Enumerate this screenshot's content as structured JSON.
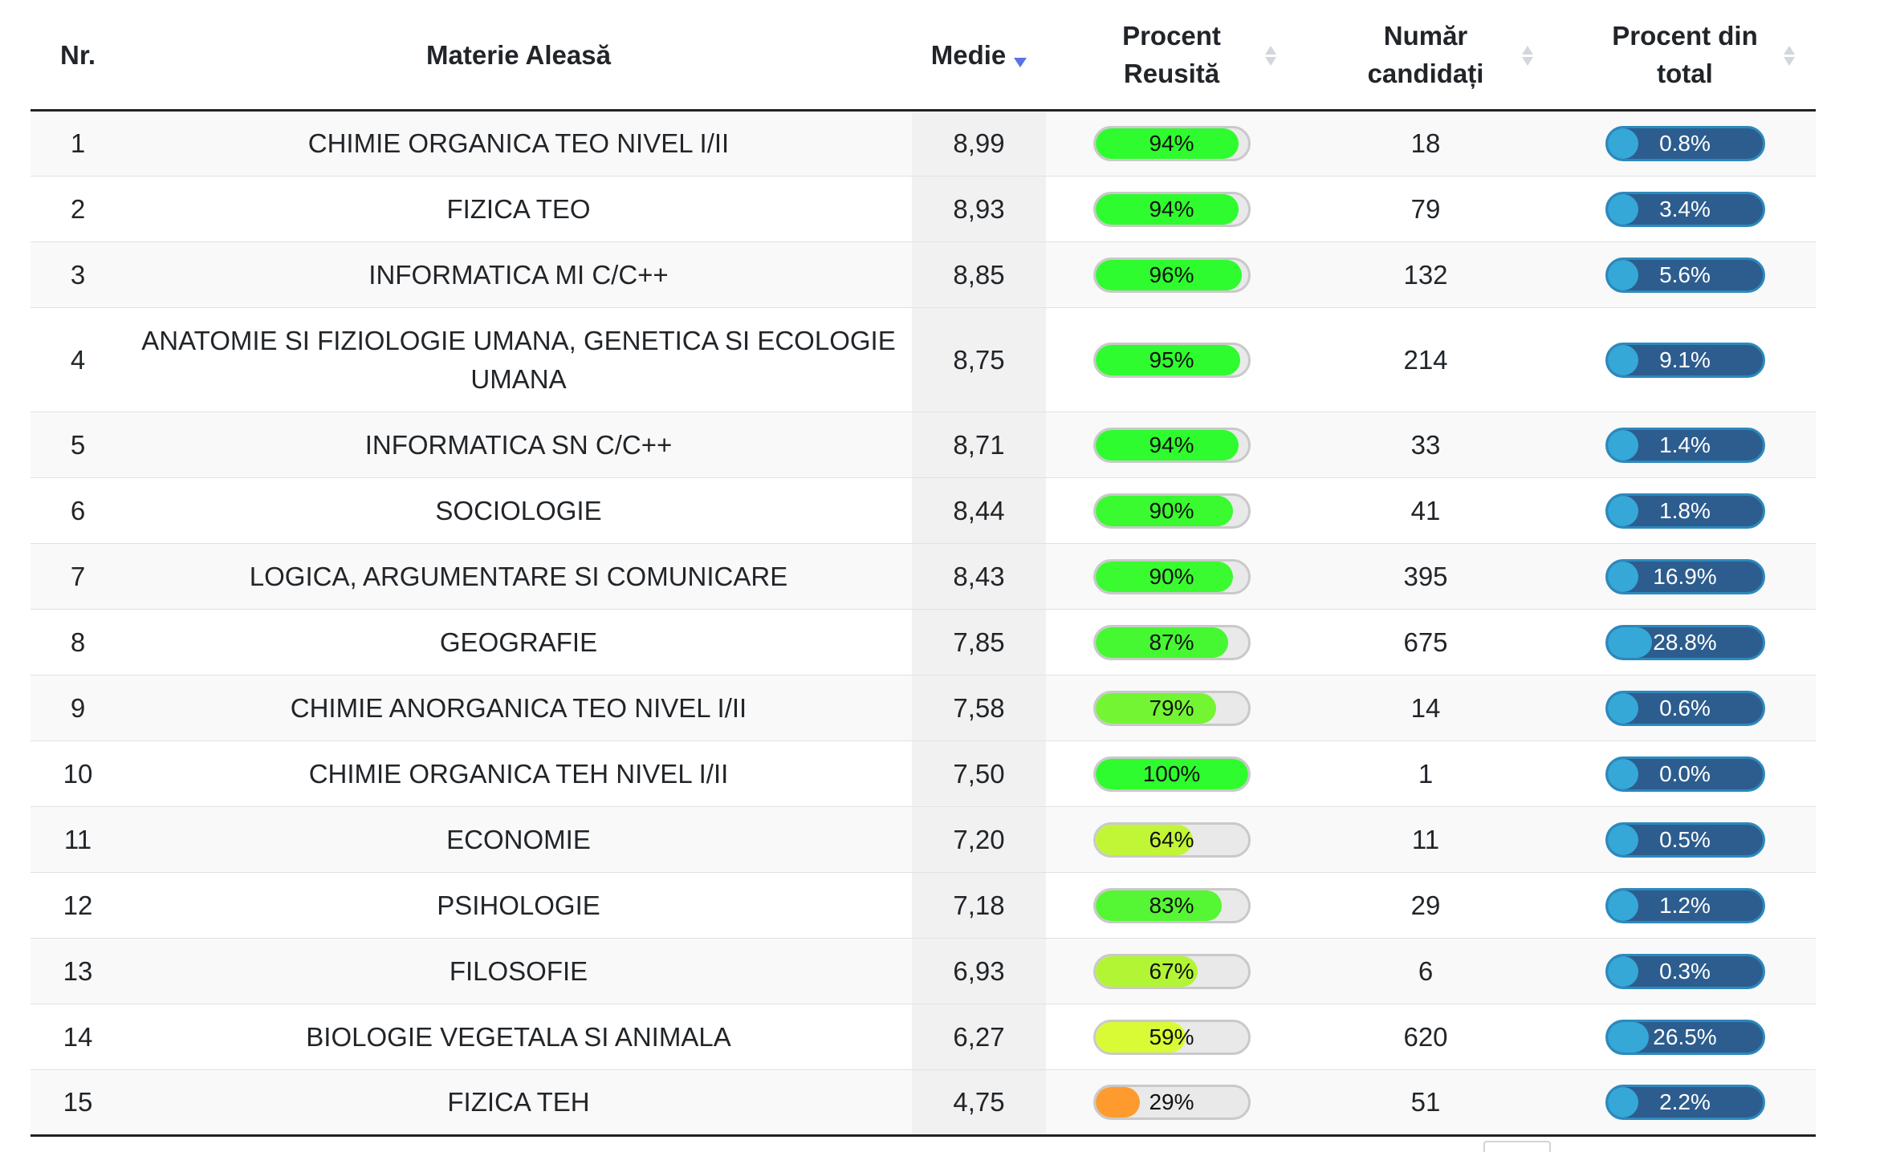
{
  "headers": {
    "nr": "Nr.",
    "materie": "Materie Aleasă",
    "medie": "Medie",
    "procent_reusita_1": "Procent",
    "procent_reusita_2": "Reusită",
    "numar_1": "Număr",
    "numar_2": "candidați",
    "procent_total_1": "Procent din",
    "procent_total_2": "total"
  },
  "rows": [
    {
      "nr": "1",
      "materie": "CHIMIE ORGANICA TEO NIVEL I/II",
      "medie": "8,99",
      "reusita": "94%",
      "reusita_value": 94,
      "reusita_color": "#2efc2e",
      "candidati": "18",
      "total": "0.8%",
      "total_value": 0.8
    },
    {
      "nr": "2",
      "materie": "FIZICA TEO",
      "medie": "8,93",
      "reusita": "94%",
      "reusita_value": 94,
      "reusita_color": "#2efc2e",
      "candidati": "79",
      "total": "3.4%",
      "total_value": 3.4
    },
    {
      "nr": "3",
      "materie": "INFORMATICA MI C/C++",
      "medie": "8,85",
      "reusita": "96%",
      "reusita_value": 96,
      "reusita_color": "#2efc2e",
      "candidati": "132",
      "total": "5.6%",
      "total_value": 5.6
    },
    {
      "nr": "4",
      "materie": "ANATOMIE SI FIZIOLOGIE UMANA, GENETICA SI ECOLOGIE UMANA",
      "medie": "8,75",
      "reusita": "95%",
      "reusita_value": 95,
      "reusita_color": "#2efc2e",
      "candidati": "214",
      "total": "9.1%",
      "total_value": 9.1
    },
    {
      "nr": "5",
      "materie": "INFORMATICA SN C/C++",
      "medie": "8,71",
      "reusita": "94%",
      "reusita_value": 94,
      "reusita_color": "#2efc2e",
      "candidati": "33",
      "total": "1.4%",
      "total_value": 1.4
    },
    {
      "nr": "6",
      "materie": "SOCIOLOGIE",
      "medie": "8,44",
      "reusita": "90%",
      "reusita_value": 90,
      "reusita_color": "#3afa30",
      "candidati": "41",
      "total": "1.8%",
      "total_value": 1.8
    },
    {
      "nr": "7",
      "materie": "LOGICA, ARGUMENTARE SI COMUNICARE",
      "medie": "8,43",
      "reusita": "90%",
      "reusita_value": 90,
      "reusita_color": "#3afa30",
      "candidati": "395",
      "total": "16.9%",
      "total_value": 16.9
    },
    {
      "nr": "8",
      "materie": "GEOGRAFIE",
      "medie": "7,85",
      "reusita": "87%",
      "reusita_value": 87,
      "reusita_color": "#45f832",
      "candidati": "675",
      "total": "28.8%",
      "total_value": 28.8
    },
    {
      "nr": "9",
      "materie": "CHIMIE ANORGANICA TEO NIVEL I/II",
      "medie": "7,58",
      "reusita": "79%",
      "reusita_value": 79,
      "reusita_color": "#74f534",
      "candidati": "14",
      "total": "0.6%",
      "total_value": 0.6
    },
    {
      "nr": "10",
      "materie": "CHIMIE ORGANICA TEH NIVEL I/II",
      "medie": "7,50",
      "reusita": "100%",
      "reusita_value": 100,
      "reusita_color": "#2efc2e",
      "candidati": "1",
      "total": "0.0%",
      "total_value": 0.0
    },
    {
      "nr": "11",
      "materie": "ECONOMIE",
      "medie": "7,20",
      "reusita": "64%",
      "reusita_value": 64,
      "reusita_color": "#c1f636",
      "candidati": "11",
      "total": "0.5%",
      "total_value": 0.5
    },
    {
      "nr": "12",
      "materie": "PSIHOLOGIE",
      "medie": "7,18",
      "reusita": "83%",
      "reusita_value": 83,
      "reusita_color": "#55f633",
      "candidati": "29",
      "total": "1.2%",
      "total_value": 1.2
    },
    {
      "nr": "13",
      "materie": "FILOSOFIE",
      "medie": "6,93",
      "reusita": "67%",
      "reusita_value": 67,
      "reusita_color": "#b2f535",
      "candidati": "6",
      "total": "0.3%",
      "total_value": 0.3
    },
    {
      "nr": "14",
      "materie": "BIOLOGIE VEGETALA SI ANIMALA",
      "medie": "6,27",
      "reusita": "59%",
      "reusita_value": 59,
      "reusita_color": "#d8fb36",
      "candidati": "620",
      "total": "26.5%",
      "total_value": 26.5
    },
    {
      "nr": "15",
      "materie": "FIZICA TEH",
      "medie": "4,75",
      "reusita": "29%",
      "reusita_value": 29,
      "reusita_color": "#ff9a2e",
      "candidati": "51",
      "total": "2.2%",
      "total_value": 2.2
    }
  ]
}
